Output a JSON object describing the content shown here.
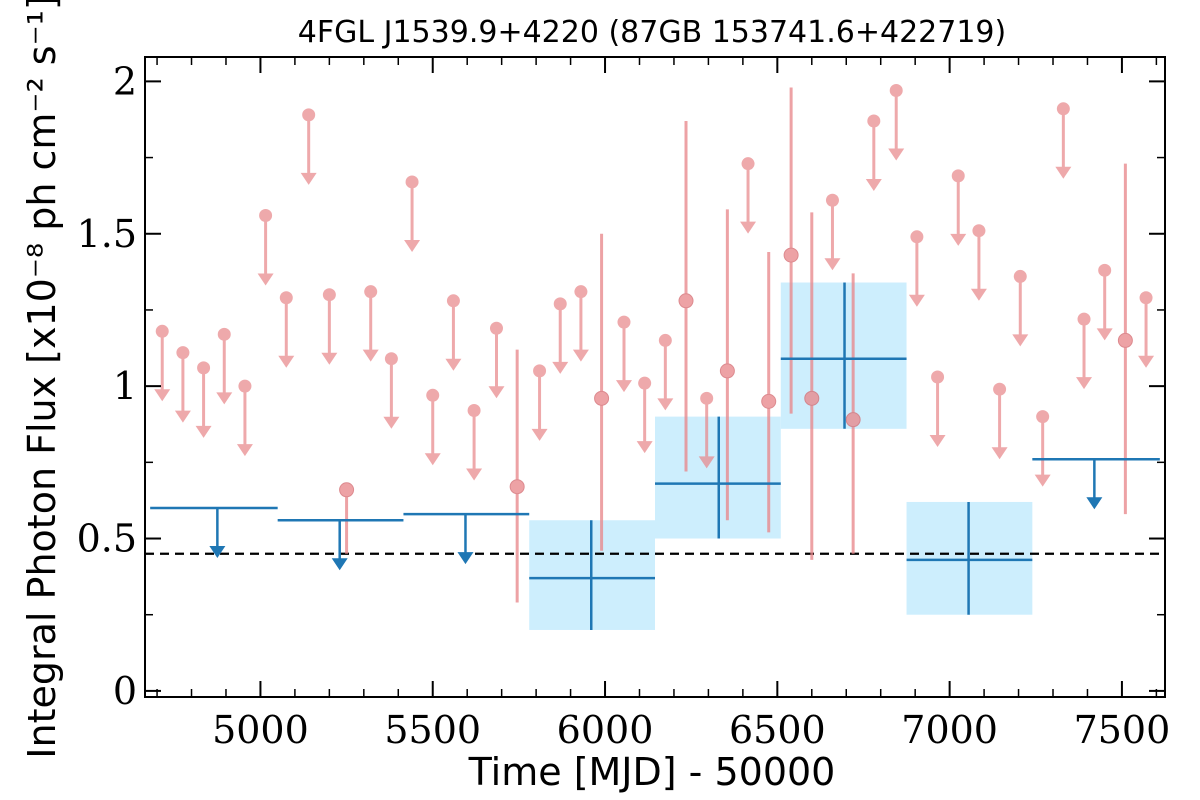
{
  "chart_data": {
    "type": "scatter",
    "title": "4FGL J1539.9+4220 (87GB 153741.6+422719)",
    "xlabel": "Time [MJD] - 50000",
    "ylabel": "Integral Photon Flux [x10⁻⁸ ph cm⁻² s⁻¹]",
    "xlim": [
      4665,
      7625
    ],
    "ylim": [
      -0.02,
      2.08
    ],
    "xticks": [
      5000,
      5500,
      6000,
      6500,
      7000,
      7500
    ],
    "xtick_labels": [
      "5000",
      "5500",
      "6000",
      "6500",
      "7000",
      "7500"
    ],
    "yticks": [
      0,
      0.5,
      1,
      1.5,
      2
    ],
    "ytick_labels": [
      "0",
      "0.5",
      "1",
      "1.5",
      "2"
    ],
    "grid": false,
    "reference_line": {
      "y": 0.45,
      "style": "dashed",
      "color": "#000000"
    },
    "colors": {
      "fine_points": "#e8888c",
      "coarse_bins": "#1f77b4",
      "coarse_band": "#cdeefd"
    },
    "series": [
      {
        "detections": [
          {
            "x": 5250,
            "y": 0.66,
            "ylo": 0.45,
            "yhi": 0.66
          },
          {
            "x": 5745,
            "y": 0.67,
            "ylo": 0.29,
            "yhi": 1.12
          },
          {
            "x": 5990,
            "y": 0.96,
            "ylo": 0.46,
            "yhi": 1.5
          },
          {
            "x": 6235,
            "y": 1.28,
            "ylo": 0.72,
            "yhi": 1.87
          },
          {
            "x": 6355,
            "y": 1.05,
            "ylo": 0.56,
            "yhi": 1.58
          },
          {
            "x": 6475,
            "y": 0.95,
            "ylo": 0.52,
            "yhi": 1.44
          },
          {
            "x": 6540,
            "y": 1.43,
            "ylo": 0.91,
            "yhi": 1.98
          },
          {
            "x": 6600,
            "y": 0.96,
            "ylo": 0.43,
            "yhi": 1.57
          },
          {
            "x": 6720,
            "y": 0.89,
            "ylo": 0.45,
            "yhi": 1.37
          },
          {
            "x": 7510,
            "y": 1.15,
            "ylo": 0.58,
            "yhi": 1.73
          }
        ],
        "upper_limits": [
          {
            "x": 4715,
            "y": 1.18
          },
          {
            "x": 4775,
            "y": 1.11
          },
          {
            "x": 4835,
            "y": 1.06
          },
          {
            "x": 4895,
            "y": 1.17
          },
          {
            "x": 4955,
            "y": 1.0
          },
          {
            "x": 5015,
            "y": 1.56
          },
          {
            "x": 5075,
            "y": 1.29
          },
          {
            "x": 5140,
            "y": 1.89
          },
          {
            "x": 5200,
            "y": 1.3
          },
          {
            "x": 5320,
            "y": 1.31
          },
          {
            "x": 5380,
            "y": 1.09
          },
          {
            "x": 5440,
            "y": 1.67
          },
          {
            "x": 5500,
            "y": 0.97
          },
          {
            "x": 5560,
            "y": 1.28
          },
          {
            "x": 5620,
            "y": 0.92
          },
          {
            "x": 5685,
            "y": 1.19
          },
          {
            "x": 5810,
            "y": 1.05
          },
          {
            "x": 5870,
            "y": 1.27
          },
          {
            "x": 5930,
            "y": 1.31
          },
          {
            "x": 6055,
            "y": 1.21
          },
          {
            "x": 6115,
            "y": 1.01
          },
          {
            "x": 6175,
            "y": 1.15
          },
          {
            "x": 6295,
            "y": 0.96
          },
          {
            "x": 6415,
            "y": 1.73
          },
          {
            "x": 6660,
            "y": 1.61
          },
          {
            "x": 6780,
            "y": 1.87
          },
          {
            "x": 6845,
            "y": 1.97
          },
          {
            "x": 6905,
            "y": 1.49
          },
          {
            "x": 6965,
            "y": 1.03
          },
          {
            "x": 7025,
            "y": 1.69
          },
          {
            "x": 7085,
            "y": 1.51
          },
          {
            "x": 7145,
            "y": 0.99
          },
          {
            "x": 7205,
            "y": 1.36
          },
          {
            "x": 7270,
            "y": 0.9
          },
          {
            "x": 7330,
            "y": 1.91
          },
          {
            "x": 7390,
            "y": 1.22
          },
          {
            "x": 7450,
            "y": 1.38
          },
          {
            "x": 7570,
            "y": 1.29
          }
        ]
      },
      {
        "detections": [
          {
            "x0": 5780,
            "x1": 6145,
            "x": 5960,
            "y": 0.37,
            "ylo": 0.2,
            "yhi": 0.56
          },
          {
            "x0": 6145,
            "x1": 6510,
            "x": 6330,
            "y": 0.68,
            "ylo": 0.5,
            "yhi": 0.9
          },
          {
            "x0": 6510,
            "x1": 6875,
            "x": 6695,
            "y": 1.09,
            "ylo": 0.86,
            "yhi": 1.34
          },
          {
            "x0": 6875,
            "x1": 7240,
            "x": 7055,
            "y": 0.43,
            "ylo": 0.25,
            "yhi": 0.62
          }
        ],
        "upper_limits": [
          {
            "x0": 4680,
            "x1": 5050,
            "x": 4875,
            "y": 0.6
          },
          {
            "x0": 5050,
            "x1": 5415,
            "x": 5230,
            "y": 0.56
          },
          {
            "x0": 5415,
            "x1": 5780,
            "x": 5595,
            "y": 0.58
          },
          {
            "x0": 7240,
            "x1": 7610,
            "x": 7420,
            "y": 0.76
          }
        ]
      }
    ]
  }
}
